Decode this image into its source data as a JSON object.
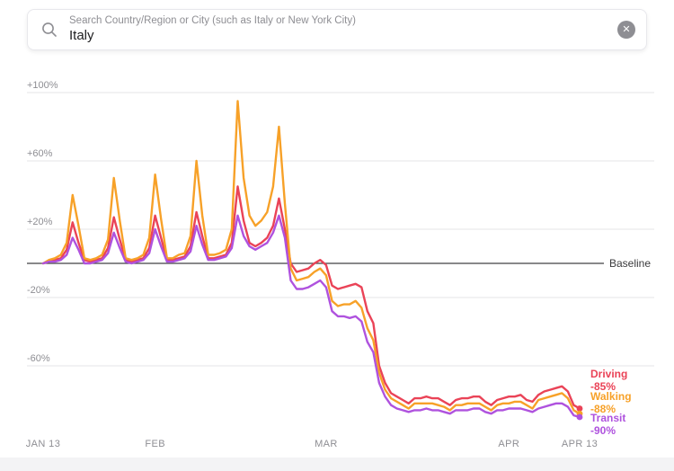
{
  "search": {
    "label": "Search Country/Region or City (such as Italy or New York City)",
    "value": "Italy",
    "search_icon": "magnifier",
    "clear_icon": "x-circle"
  },
  "chart_data": {
    "type": "line",
    "x_unit": "day",
    "x_count": 92,
    "x_range": [
      "JAN 13",
      "APR 13"
    ],
    "x_ticks": [
      {
        "index": 0,
        "label": "JAN 13"
      },
      {
        "index": 19,
        "label": "FEB"
      },
      {
        "index": 48,
        "label": "MAR"
      },
      {
        "index": 79,
        "label": "APR"
      },
      {
        "index": 91,
        "label": "APR 13"
      }
    ],
    "y_gridlines": [
      100,
      60,
      20,
      -20,
      -60
    ],
    "y_tick_labels": [
      "+100%",
      "+60%",
      "+20%",
      "-20%",
      "-60%"
    ],
    "ylim": [
      -105,
      110
    ],
    "baseline": {
      "value": 0,
      "label": "Baseline"
    },
    "grid_color": "#e4e4e7",
    "baseline_color": "#414144",
    "tick_color": "#8e8e93",
    "legend_position": "right-end-of-line",
    "series": [
      {
        "name": "Driving",
        "color": "#ea4357",
        "end_label": "-85%",
        "values": [
          0,
          1,
          2,
          3,
          8,
          24,
          12,
          2,
          1,
          2,
          3,
          9,
          27,
          14,
          2,
          1,
          2,
          3,
          9,
          28,
          15,
          2,
          2,
          3,
          4,
          10,
          30,
          16,
          3,
          3,
          4,
          5,
          12,
          45,
          25,
          12,
          10,
          12,
          15,
          22,
          38,
          20,
          0,
          -5,
          -4,
          -3,
          0,
          2,
          -1,
          -13,
          -15,
          -14,
          -13,
          -12,
          -14,
          -28,
          -35,
          -60,
          -70,
          -76,
          -78,
          -80,
          -82,
          -79,
          -79,
          -78,
          -79,
          -79,
          -81,
          -83,
          -80,
          -79,
          -79,
          -78,
          -78,
          -81,
          -83,
          -80,
          -79,
          -78,
          -78,
          -77,
          -80,
          -81,
          -77,
          -75,
          -74,
          -73,
          -72,
          -75,
          -83,
          -85
        ]
      },
      {
        "name": "Walking",
        "color": "#f7a128",
        "end_label": "-88%",
        "values": [
          0,
          2,
          3,
          5,
          12,
          40,
          22,
          3,
          2,
          3,
          5,
          14,
          50,
          25,
          3,
          2,
          3,
          5,
          15,
          52,
          26,
          3,
          3,
          5,
          6,
          16,
          60,
          28,
          5,
          5,
          6,
          8,
          20,
          95,
          50,
          28,
          22,
          25,
          30,
          45,
          80,
          35,
          -3,
          -10,
          -9,
          -8,
          -5,
          -3,
          -7,
          -22,
          -25,
          -24,
          -24,
          -22,
          -26,
          -38,
          -45,
          -64,
          -74,
          -79,
          -81,
          -83,
          -85,
          -82,
          -82,
          -82,
          -82,
          -83,
          -84,
          -86,
          -83,
          -83,
          -82,
          -82,
          -82,
          -84,
          -86,
          -83,
          -82,
          -82,
          -81,
          -81,
          -83,
          -85,
          -80,
          -79,
          -78,
          -77,
          -76,
          -79,
          -86,
          -88
        ]
      },
      {
        "name": "Transit",
        "color": "#af52de",
        "end_label": "-90%",
        "values": [
          0,
          1,
          1,
          2,
          5,
          15,
          8,
          0,
          0,
          1,
          2,
          6,
          18,
          9,
          1,
          0,
          1,
          2,
          6,
          20,
          10,
          1,
          1,
          2,
          3,
          7,
          22,
          11,
          2,
          2,
          3,
          4,
          9,
          28,
          16,
          10,
          8,
          10,
          12,
          18,
          28,
          15,
          -10,
          -15,
          -15,
          -14,
          -12,
          -10,
          -14,
          -28,
          -31,
          -31,
          -32,
          -31,
          -34,
          -46,
          -52,
          -70,
          -78,
          -83,
          -85,
          -86,
          -87,
          -86,
          -86,
          -85,
          -86,
          -86,
          -87,
          -88,
          -86,
          -86,
          -86,
          -85,
          -85,
          -87,
          -88,
          -86,
          -86,
          -85,
          -85,
          -85,
          -86,
          -87,
          -85,
          -84,
          -83,
          -82,
          -82,
          -84,
          -89,
          -90
        ]
      }
    ]
  }
}
